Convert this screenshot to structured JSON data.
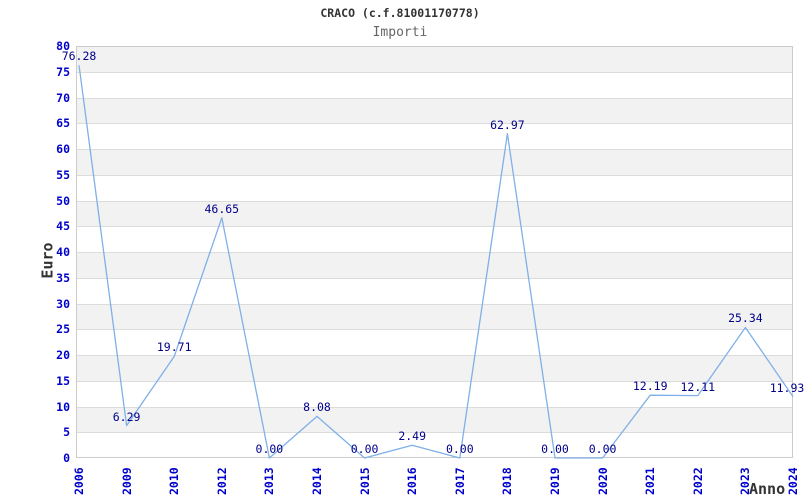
{
  "header": {
    "title": "CRACO (c.f.81001170778)",
    "subtitle": "Importi"
  },
  "chart_data": {
    "type": "line",
    "title": "CRACO (c.f.81001170778)",
    "subtitle": "Importi",
    "xlabel": "Anno",
    "ylabel": "Euro",
    "categories": [
      "2006",
      "2009",
      "2010",
      "2012",
      "2013",
      "2014",
      "2015",
      "2016",
      "2017",
      "2018",
      "2019",
      "2020",
      "2021",
      "2022",
      "2023",
      "2024"
    ],
    "values": [
      76.28,
      6.29,
      19.71,
      46.65,
      0,
      8.08,
      0,
      2.49,
      0,
      62.97,
      0,
      0,
      12.19,
      12.11,
      25.34,
      11.93
    ],
    "value_labels": [
      "76.28",
      "6.29",
      "19.71",
      "46.65",
      "0.00",
      "8.08",
      "0.00",
      "2.49",
      "0.00",
      "62.97",
      "0.00",
      "0.00",
      "12.19",
      "12.11",
      "25.34",
      "11.93"
    ],
    "ylim": [
      0,
      80
    ],
    "ytick_step": 5,
    "grid": true,
    "alternating_bands": true,
    "legend": "none",
    "colors": {
      "line": "#7fb0e8",
      "tick_label": "#0000cc",
      "value_label": "#00008b",
      "band": "#f2f2f2",
      "gridline": "#dcdcdc",
      "plot_border": "#cccccc",
      "title": "#333333",
      "subtitle": "#666666",
      "axis_title": "#333333",
      "background": "#ffffff"
    }
  }
}
